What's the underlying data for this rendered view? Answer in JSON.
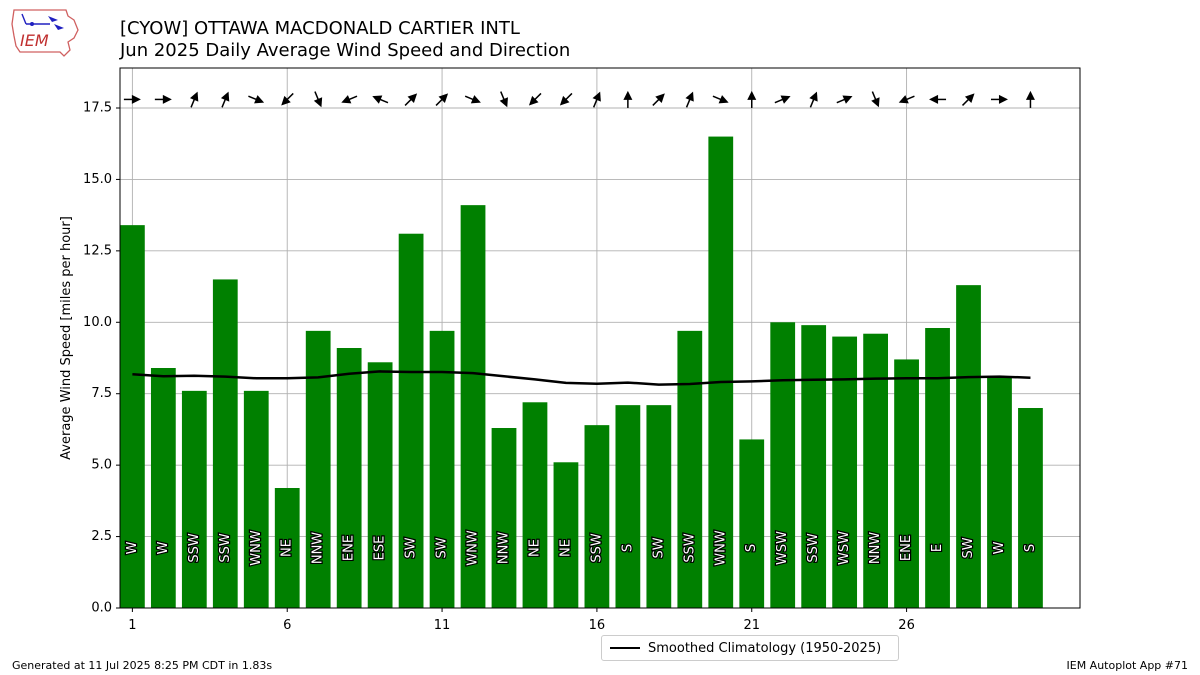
{
  "header": {
    "title_line1": "[CYOW] OTTAWA MACDONALD CARTIER INTL",
    "title_line2": "Jun 2025 Daily Average Wind Speed and Direction"
  },
  "logo": {
    "text": "IEM"
  },
  "footer": {
    "left": "Generated at 11 Jul 2025 8:25 PM CDT in 1.83s",
    "right": "IEM Autoplot App #71"
  },
  "legend": {
    "label": "Smoothed Climatology (1950-2025)"
  },
  "colors": {
    "bar": "#008000",
    "climatology": "#000000",
    "grid": "#b0b0b0"
  },
  "chart_data": {
    "type": "bar",
    "ylabel": "Average Wind Speed [miles per hour]",
    "xlabel": "",
    "ylim": [
      0,
      18.9
    ],
    "xlim": [
      0.6,
      31.6
    ],
    "grid": true,
    "legend_placement": "bottom-center",
    "xticks": [
      1,
      6,
      11,
      16,
      21,
      26
    ],
    "yticks": [
      0.0,
      2.5,
      5.0,
      7.5,
      10.0,
      12.5,
      15.0,
      17.5
    ],
    "days": [
      1,
      2,
      3,
      4,
      5,
      6,
      7,
      8,
      9,
      10,
      11,
      12,
      13,
      14,
      15,
      16,
      17,
      18,
      19,
      20,
      21,
      22,
      23,
      24,
      25,
      26,
      27,
      28,
      29,
      30
    ],
    "values": [
      13.4,
      8.4,
      7.6,
      11.5,
      7.6,
      4.2,
      9.7,
      9.1,
      8.6,
      13.1,
      9.7,
      14.1,
      6.3,
      7.2,
      5.1,
      6.4,
      7.1,
      7.1,
      9.7,
      16.5,
      5.9,
      10.0,
      9.9,
      9.5,
      9.6,
      8.7,
      9.8,
      11.3,
      8.1,
      7.0
    ],
    "directions": [
      "W",
      "W",
      "SSW",
      "SSW",
      "WNW",
      "NE",
      "NNW",
      "ENE",
      "ESE",
      "SW",
      "SW",
      "WNW",
      "NNW",
      "NE",
      "NE",
      "SSW",
      "S",
      "SW",
      "SSW",
      "WNW",
      "S",
      "WSW",
      "SSW",
      "WSW",
      "NNW",
      "ENE",
      "E",
      "SW",
      "W",
      "S"
    ],
    "climatology": {
      "name": "Smoothed Climatology (1950-2025)",
      "values": [
        8.18,
        8.11,
        8.13,
        8.1,
        8.04,
        8.04,
        8.07,
        8.2,
        8.28,
        8.26,
        8.26,
        8.22,
        8.11,
        8.0,
        7.88,
        7.85,
        7.89,
        7.82,
        7.84,
        7.91,
        7.93,
        7.97,
        7.99,
        8.0,
        8.03,
        8.04,
        8.04,
        8.08,
        8.1,
        8.06
      ]
    },
    "arrow_y": 17.8
  }
}
